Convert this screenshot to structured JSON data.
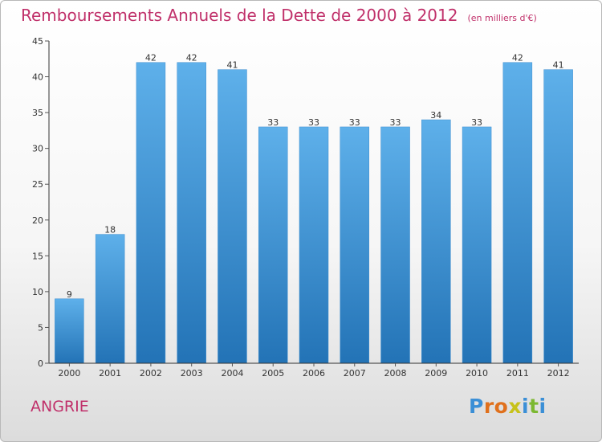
{
  "title": "Remboursements Annuels de la Dette de 2000 à 2012",
  "unit_note": "(en milliers d'€)",
  "commune": "ANGRIE",
  "logo": {
    "text": "Proxiti",
    "letters": [
      {
        "ch": "P",
        "color": "#3b8fd6"
      },
      {
        "ch": "r",
        "color": "#e0701c"
      },
      {
        "ch": "o",
        "color": "#e0701c"
      },
      {
        "ch": "x",
        "color": "#c7c21a"
      },
      {
        "ch": "i",
        "color": "#3b8fd6"
      },
      {
        "ch": "t",
        "color": "#7cb832"
      },
      {
        "ch": "i",
        "color": "#3b8fd6"
      }
    ]
  },
  "colors": {
    "title": "#c0306a",
    "bar_light": "#5eb0ea",
    "bar_dark": "#2373b6",
    "axis": "#333333",
    "grid_tick": "#555555"
  },
  "chart_data": {
    "type": "bar",
    "categories": [
      "2000",
      "2001",
      "2002",
      "2003",
      "2004",
      "2005",
      "2006",
      "2007",
      "2008",
      "2009",
      "2010",
      "2011",
      "2012"
    ],
    "values": [
      9,
      18,
      42,
      42,
      41,
      33,
      33,
      33,
      33,
      34,
      33,
      42,
      41
    ],
    "data_labels": [
      "9",
      "18",
      "42",
      "42",
      "41",
      "33",
      "33",
      "33",
      "33",
      "34",
      "33",
      "42",
      "41"
    ],
    "ylim": [
      0,
      45
    ],
    "yticks": [
      0,
      5,
      10,
      15,
      20,
      25,
      30,
      35,
      40,
      45
    ],
    "xlabel": "",
    "ylabel": "",
    "grid": false,
    "legend": "none"
  }
}
